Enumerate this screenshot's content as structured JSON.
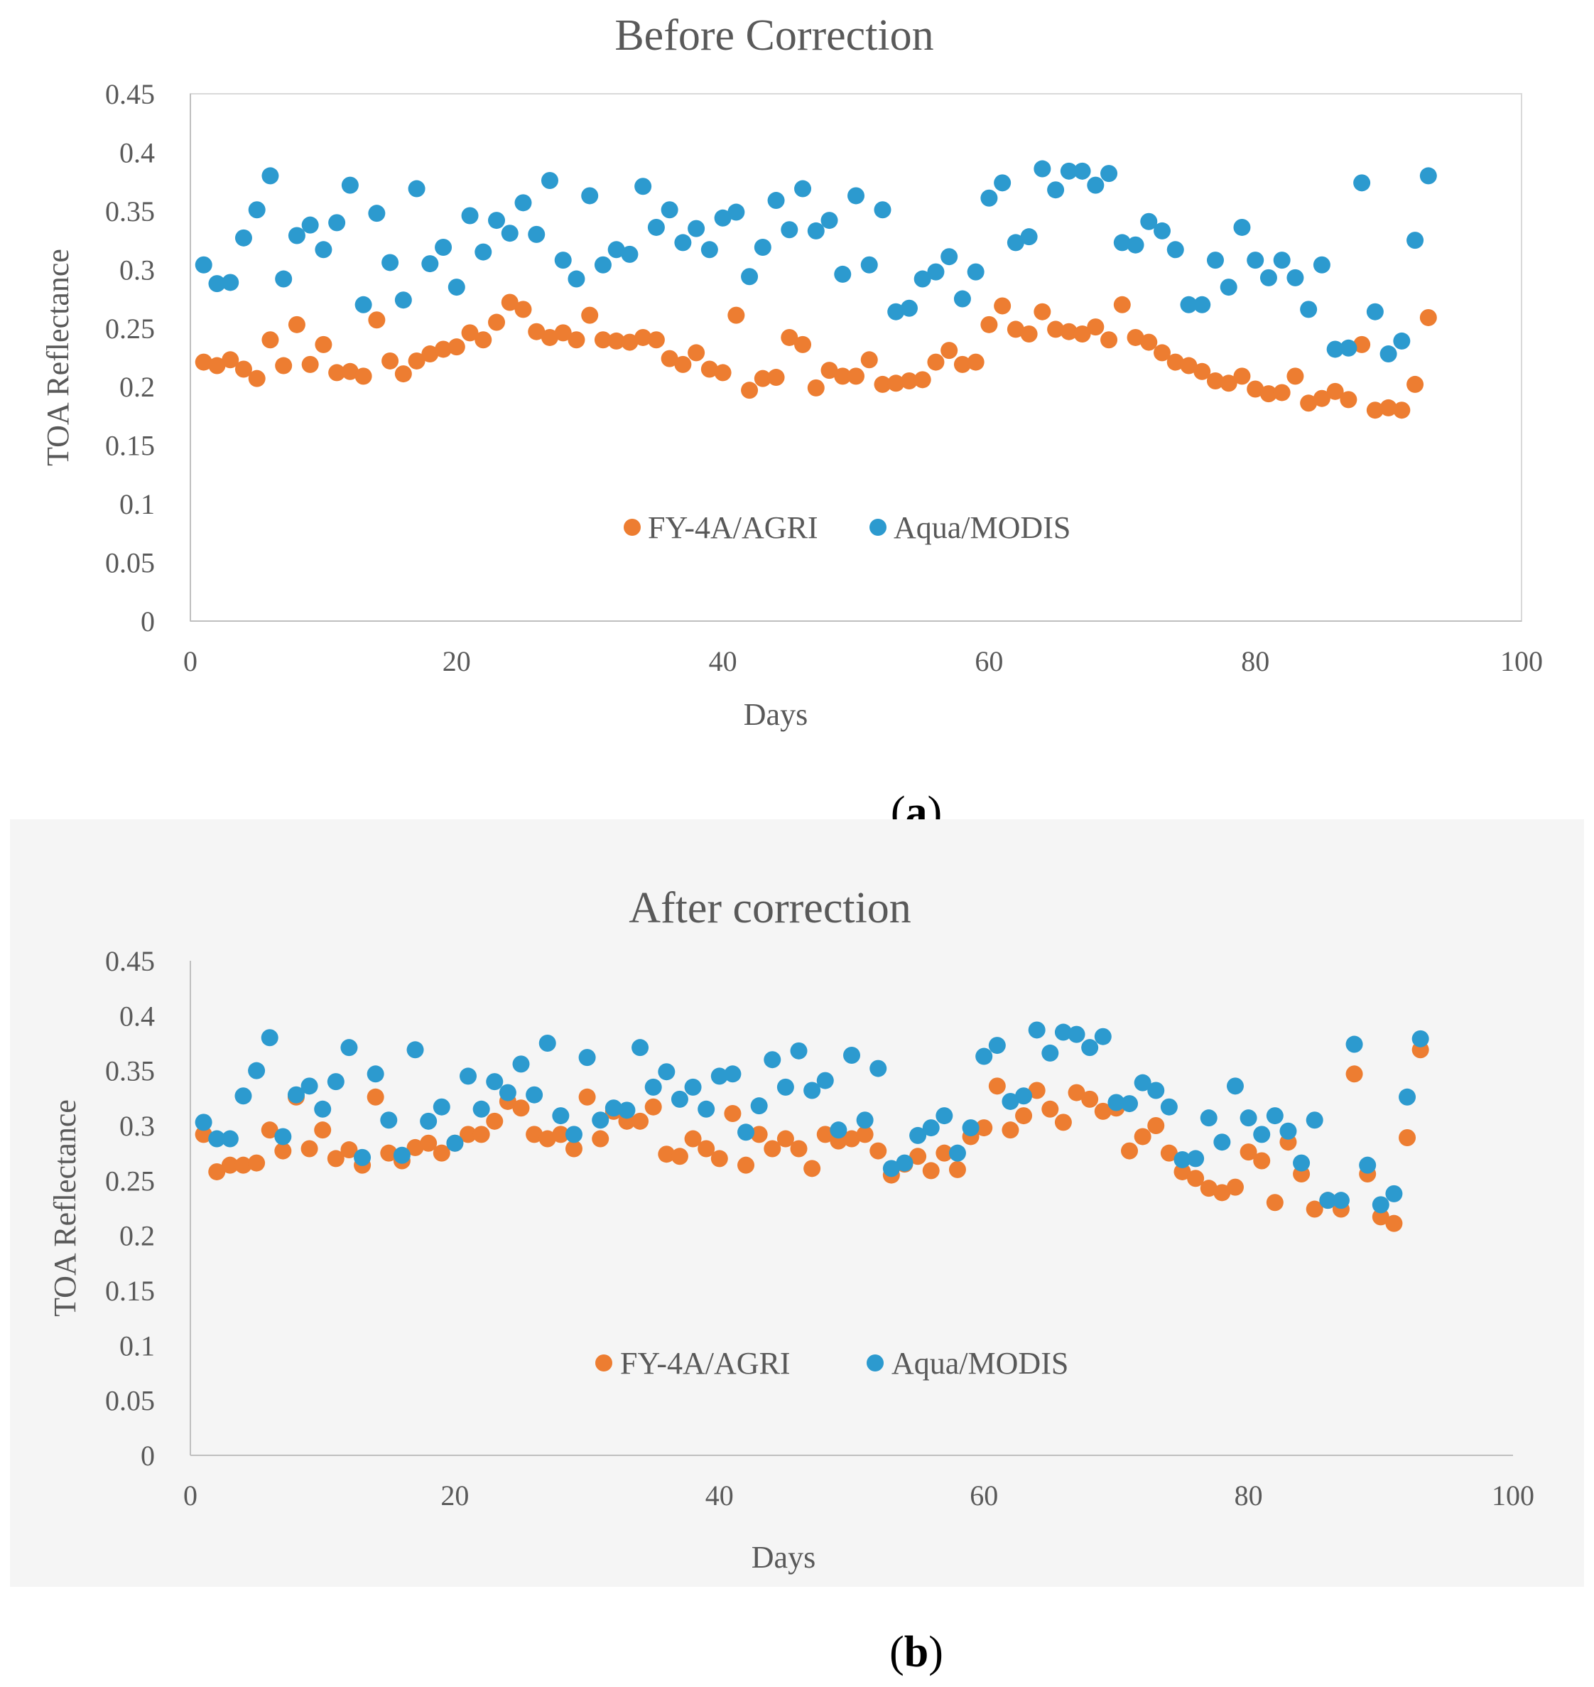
{
  "figure": {
    "panels": [
      {
        "label_open": "(",
        "label_letter": "a",
        "label_close": ")"
      },
      {
        "label_open": "(",
        "label_letter": "b",
        "label_close": ")"
      }
    ]
  },
  "colors": {
    "fy4a": "#ED7D31",
    "modis": "#2C9ACF",
    "axis": "#BFBFBF",
    "text": "#595959",
    "panel_b_background": "#F5F5F5"
  },
  "chart_data": [
    {
      "type": "scatter",
      "title": "Before Correction",
      "xlabel": "Days",
      "ylabel": "TOA Reflectance",
      "xlim": [
        0,
        100
      ],
      "ylim": [
        0,
        0.45
      ],
      "xticks": [
        "0",
        "20",
        "40",
        "60",
        "80",
        "100"
      ],
      "yticks": [
        "0",
        "0.05",
        "0.1",
        "0.15",
        "0.2",
        "0.25",
        "0.3",
        "0.35",
        "0.4",
        "0.45"
      ],
      "grid": false,
      "legend": "inside-bottom-center",
      "series": [
        {
          "name": "FY-4A/AGRI",
          "x": [
            1,
            2,
            3,
            4,
            5,
            6,
            7,
            8,
            9,
            10,
            11,
            12,
            13,
            14,
            15,
            16,
            17,
            18,
            19,
            20,
            21,
            22,
            23,
            24,
            25,
            26,
            27,
            28,
            29,
            30,
            31,
            32,
            33,
            34,
            35,
            36,
            37,
            38,
            39,
            40,
            41,
            42,
            43,
            44,
            45,
            46,
            47,
            48,
            49,
            50,
            51,
            52,
            53,
            54,
            55,
            56,
            57,
            58,
            59,
            60,
            61,
            62,
            63,
            64,
            65,
            66,
            67,
            68,
            69,
            70,
            71,
            72,
            73,
            74,
            75,
            76,
            77,
            78,
            79,
            80,
            81,
            82,
            83,
            84,
            85,
            86,
            87,
            88,
            89,
            90,
            91,
            92,
            93
          ],
          "y": [
            0.221,
            0.218,
            0.223,
            0.215,
            0.207,
            0.24,
            0.218,
            0.253,
            0.219,
            0.236,
            0.212,
            0.213,
            0.209,
            0.257,
            0.222,
            0.211,
            0.222,
            0.228,
            0.232,
            0.234,
            0.246,
            0.24,
            0.255,
            0.272,
            0.266,
            0.247,
            0.242,
            0.246,
            0.24,
            0.261,
            0.24,
            0.239,
            0.238,
            0.242,
            0.24,
            0.224,
            0.219,
            0.229,
            0.215,
            0.212,
            0.261,
            0.197,
            0.207,
            0.208,
            0.242,
            0.236,
            0.199,
            0.214,
            0.209,
            0.209,
            0.223,
            0.202,
            0.203,
            0.205,
            0.206,
            0.221,
            0.231,
            0.219,
            0.221,
            0.253,
            0.269,
            0.249,
            0.245,
            0.264,
            0.249,
            0.247,
            0.245,
            0.251,
            0.24,
            0.27,
            0.242,
            0.238,
            0.229,
            0.221,
            0.218,
            0.213,
            0.205,
            0.203,
            0.209,
            0.198,
            0.194,
            0.195,
            0.209,
            0.186,
            0.19,
            0.196,
            0.189,
            0.236,
            0.18,
            0.182,
            0.18,
            0.202,
            0.259
          ]
        },
        {
          "name": "Aqua/MODIS",
          "x": [
            1,
            2,
            3,
            4,
            5,
            6,
            7,
            8,
            9,
            10,
            11,
            12,
            13,
            14,
            15,
            16,
            17,
            18,
            19,
            20,
            21,
            22,
            23,
            24,
            25,
            26,
            27,
            28,
            29,
            30,
            31,
            32,
            33,
            34,
            35,
            36,
            37,
            38,
            39,
            40,
            41,
            42,
            43,
            44,
            45,
            46,
            47,
            48,
            49,
            50,
            51,
            52,
            53,
            54,
            55,
            56,
            57,
            58,
            59,
            60,
            61,
            62,
            63,
            64,
            65,
            66,
            67,
            68,
            69,
            70,
            71,
            72,
            73,
            74,
            75,
            76,
            77,
            78,
            79,
            80,
            81,
            82,
            83,
            84,
            85,
            86,
            87,
            88,
            89,
            90,
            91,
            92,
            93
          ],
          "y": [
            0.304,
            0.288,
            0.289,
            0.327,
            0.351,
            0.38,
            0.292,
            0.329,
            0.338,
            0.317,
            0.34,
            0.372,
            0.27,
            0.348,
            0.306,
            0.274,
            0.369,
            0.305,
            0.319,
            0.285,
            0.346,
            0.315,
            0.342,
            0.331,
            0.357,
            0.33,
            0.376,
            0.308,
            0.292,
            0.363,
            0.304,
            0.317,
            0.313,
            0.371,
            0.336,
            0.351,
            0.323,
            0.335,
            0.317,
            0.344,
            0.349,
            0.294,
            0.319,
            0.359,
            0.334,
            0.369,
            0.333,
            0.342,
            0.296,
            0.363,
            0.304,
            0.351,
            0.264,
            0.267,
            0.292,
            0.298,
            0.311,
            0.275,
            0.298,
            0.361,
            0.374,
            0.323,
            0.328,
            0.386,
            0.368,
            0.384,
            0.384,
            0.372,
            0.382,
            0.323,
            0.321,
            0.341,
            0.333,
            0.317,
            0.27,
            0.27,
            0.308,
            0.285,
            0.336,
            0.308,
            0.293,
            0.308,
            0.293,
            0.266,
            0.304,
            0.232,
            0.233,
            0.374,
            0.264,
            0.228,
            0.239,
            0.325,
            0.38
          ]
        }
      ]
    },
    {
      "type": "scatter",
      "title": "After correction",
      "xlabel": "Days",
      "ylabel": "TOA Reflectance",
      "xlim": [
        0,
        100
      ],
      "ylim": [
        0,
        0.45
      ],
      "xticks": [
        "0",
        "20",
        "40",
        "60",
        "80",
        "100"
      ],
      "yticks": [
        "0",
        "0.05",
        "0.1",
        "0.15",
        "0.2",
        "0.25",
        "0.3",
        "0.35",
        "0.4",
        "0.45"
      ],
      "grid": false,
      "legend": "inside-bottom-center",
      "series": [
        {
          "name": "FY-4A/AGRI",
          "x": [
            1,
            2,
            3,
            4,
            5,
            6,
            7,
            8,
            9,
            10,
            11,
            12,
            13,
            14,
            15,
            16,
            17,
            18,
            19,
            20,
            21,
            22,
            23,
            24,
            25,
            26,
            27,
            28,
            29,
            30,
            31,
            32,
            33,
            34,
            35,
            36,
            37,
            38,
            39,
            40,
            41,
            42,
            43,
            44,
            45,
            46,
            47,
            48,
            49,
            50,
            51,
            52,
            53,
            54,
            55,
            56,
            57,
            58,
            59,
            60,
            61,
            62,
            63,
            64,
            65,
            66,
            67,
            68,
            69,
            70,
            71,
            72,
            73,
            74,
            75,
            76,
            77,
            78,
            79,
            80,
            81,
            82,
            83,
            84,
            85,
            86,
            87,
            88,
            89,
            90,
            91,
            92,
            93
          ],
          "y": [
            0.292,
            0.258,
            0.264,
            0.264,
            0.266,
            0.296,
            0.277,
            0.326,
            0.279,
            0.296,
            0.27,
            0.278,
            0.264,
            0.326,
            0.275,
            0.268,
            0.28,
            0.284,
            0.275,
            0.284,
            0.292,
            0.292,
            0.304,
            0.322,
            0.316,
            0.292,
            0.288,
            0.292,
            0.279,
            0.326,
            0.288,
            0.313,
            0.304,
            0.304,
            0.317,
            0.274,
            0.272,
            0.288,
            0.279,
            0.27,
            0.311,
            0.264,
            0.292,
            0.279,
            0.288,
            0.279,
            0.261,
            0.292,
            0.286,
            0.288,
            0.292,
            0.277,
            0.255,
            0.265,
            0.272,
            0.259,
            0.275,
            0.26,
            0.29,
            0.298,
            0.336,
            0.296,
            0.309,
            0.332,
            0.315,
            0.303,
            0.33,
            0.324,
            0.313,
            0.316,
            0.277,
            0.29,
            0.3,
            0.275,
            0.258,
            0.252,
            0.243,
            0.239,
            0.244,
            0.276,
            0.268,
            0.23,
            0.285,
            0.256,
            0.224,
            0.232,
            0.224,
            0.347,
            0.256,
            0.217,
            0.211,
            0.289,
            0.369
          ]
        },
        {
          "name": "Aqua/MODIS",
          "x": [
            1,
            2,
            3,
            4,
            5,
            6,
            7,
            8,
            9,
            10,
            11,
            12,
            13,
            14,
            15,
            16,
            17,
            18,
            19,
            20,
            21,
            22,
            23,
            24,
            25,
            26,
            27,
            28,
            29,
            30,
            31,
            32,
            33,
            34,
            35,
            36,
            37,
            38,
            39,
            40,
            41,
            42,
            43,
            44,
            45,
            46,
            47,
            48,
            49,
            50,
            51,
            52,
            53,
            54,
            55,
            56,
            57,
            58,
            59,
            60,
            61,
            62,
            63,
            64,
            65,
            66,
            67,
            68,
            69,
            70,
            71,
            72,
            73,
            74,
            75,
            76,
            77,
            78,
            79,
            80,
            81,
            82,
            83,
            84,
            85,
            86,
            87,
            88,
            89,
            90,
            91,
            92,
            93
          ],
          "y": [
            0.303,
            0.288,
            0.288,
            0.327,
            0.35,
            0.38,
            0.29,
            0.328,
            0.336,
            0.315,
            0.34,
            0.371,
            0.271,
            0.347,
            0.305,
            0.273,
            0.369,
            0.304,
            0.317,
            0.284,
            0.345,
            0.315,
            0.34,
            0.33,
            0.356,
            0.328,
            0.375,
            0.309,
            0.292,
            0.362,
            0.305,
            0.316,
            0.314,
            0.371,
            0.335,
            0.349,
            0.324,
            0.335,
            0.315,
            0.345,
            0.347,
            0.294,
            0.318,
            0.36,
            0.335,
            0.368,
            0.332,
            0.341,
            0.296,
            0.364,
            0.305,
            0.352,
            0.261,
            0.266,
            0.291,
            0.298,
            0.309,
            0.275,
            0.298,
            0.363,
            0.373,
            0.322,
            0.327,
            0.387,
            0.366,
            0.385,
            0.383,
            0.371,
            0.381,
            0.321,
            0.32,
            0.339,
            0.332,
            0.317,
            0.269,
            0.27,
            0.307,
            0.285,
            0.336,
            0.307,
            0.292,
            0.309,
            0.295,
            0.266,
            0.305,
            0.232,
            0.232,
            0.374,
            0.264,
            0.228,
            0.238,
            0.326,
            0.379
          ]
        }
      ]
    }
  ]
}
